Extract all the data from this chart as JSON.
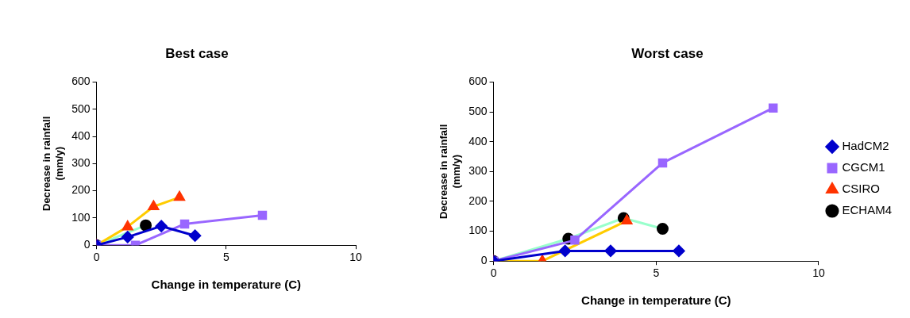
{
  "chart_data": [
    {
      "type": "line",
      "title": "Best case",
      "xlabel": "Change in temperature (C)",
      "ylabel": "Decrease in rainfall (mm/y)",
      "xlim": [
        0,
        10
      ],
      "xticks": [
        0,
        5,
        10
      ],
      "ylim": [
        0,
        600
      ],
      "yticks": [
        0,
        100,
        200,
        300,
        400,
        500,
        600
      ],
      "grid": false,
      "legend": false,
      "series": [
        {
          "color": "#0000cc",
          "marker": "diamond",
          "x": [
            0,
            1.2,
            2.5,
            3.8
          ],
          "values": [
            0,
            30,
            70,
            35
          ]
        },
        {
          "color": "#9966ff",
          "marker": "square",
          "x": [
            0,
            1.5,
            3.4,
            6.4
          ],
          "values": [
            0,
            0,
            78,
            110
          ]
        },
        {
          "color": "#ffcc00",
          "colors": [
            "#ff3300",
            "#ff3300",
            "#ff3300",
            "#ff3300"
          ],
          "marker": "triangle",
          "x": [
            0,
            1.2,
            2.2,
            3.2
          ],
          "values": [
            0,
            68,
            142,
            176
          ]
        },
        {
          "color": "#99ffcc",
          "colors": [
            "#000000",
            "#000000"
          ],
          "marker": "circle",
          "x": [
            0,
            1.9
          ],
          "values": [
            0,
            73
          ]
        }
      ]
    },
    {
      "type": "line",
      "title": "Worst case",
      "xlabel": "Change in temperature (C)",
      "ylabel": "Decrease in rainfall (mm/y)",
      "xlim": [
        0,
        10
      ],
      "xticks": [
        0,
        5,
        10
      ],
      "ylim": [
        0,
        600
      ],
      "yticks": [
        0,
        100,
        200,
        300,
        400,
        500,
        600
      ],
      "grid": false,
      "legend": "right",
      "series": [
        {
          "name": "HadCM2",
          "color": "#0000cc",
          "marker": "diamond",
          "x": [
            0,
            2.2,
            3.6,
            5.7
          ],
          "values": [
            0,
            34,
            34,
            34
          ]
        },
        {
          "name": "CGCM1",
          "color": "#9966ff",
          "marker": "square",
          "x": [
            0,
            2.5,
            5.2,
            8.6
          ],
          "values": [
            0,
            70,
            329,
            513
          ]
        },
        {
          "name": "CSIRO",
          "color": "#ffcc00",
          "colors": [
            "#ff3300",
            "#ff3300",
            "#ff3300",
            "#ff3300"
          ],
          "marker": "triangle",
          "x": [
            0,
            1.5,
            2.6,
            4.1
          ],
          "values": [
            0,
            0,
            null,
            135
          ]
        },
        {
          "name": "ECHAM4",
          "color": "#99ffcc",
          "colors": [
            "#000000",
            "#000000",
            "#000000",
            "#000000"
          ],
          "marker": "circle",
          "x": [
            0,
            2.3,
            4.0,
            5.2
          ],
          "values": [
            0,
            75,
            144,
            108
          ]
        }
      ]
    }
  ]
}
